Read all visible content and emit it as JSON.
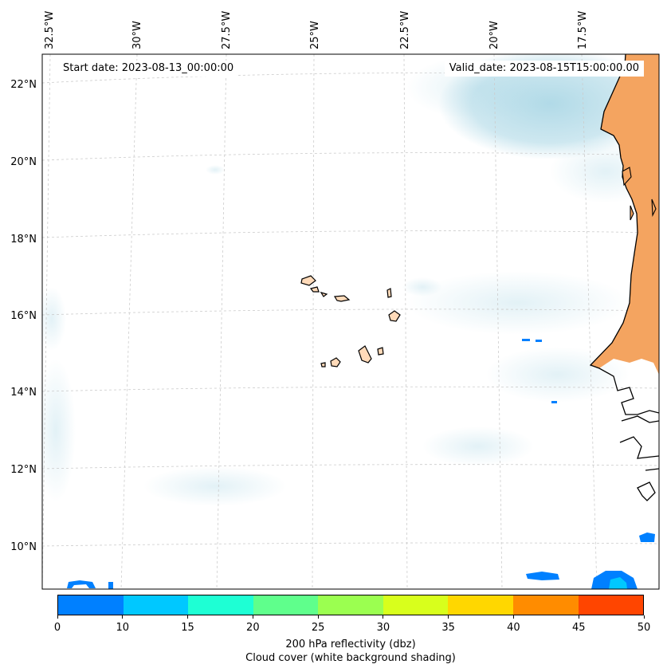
{
  "map": {
    "start_label": "Start date: 2023-08-13_00:00:00",
    "valid_label": "Valid_date: 2023-08-15T15:00:00.00",
    "lon_labels": [
      "32.5°W",
      "30°W",
      "27.5°W",
      "25°W",
      "22.5°W",
      "20°W",
      "17.5°W"
    ],
    "lat_labels": [
      "22°N",
      "20°N",
      "18°N",
      "16°N",
      "14°N",
      "12°N",
      "10°N"
    ],
    "land_color": "#f4a460",
    "cloud_color": "#add8e6",
    "island_color": "#ffdab9"
  },
  "colorbar": {
    "ticks": [
      "0",
      "10",
      "15",
      "20",
      "25",
      "30",
      "35",
      "40",
      "45",
      "50"
    ],
    "colors": [
      "#0080ff",
      "#00c8ff",
      "#1effd4",
      "#5fff8c",
      "#9bff50",
      "#d8ff1c",
      "#ffd700",
      "#ff8c00",
      "#ff4500"
    ],
    "label_line1": "200 hPa reflectivity (dbz)",
    "label_line2": "Cloud cover (white background shading)"
  }
}
